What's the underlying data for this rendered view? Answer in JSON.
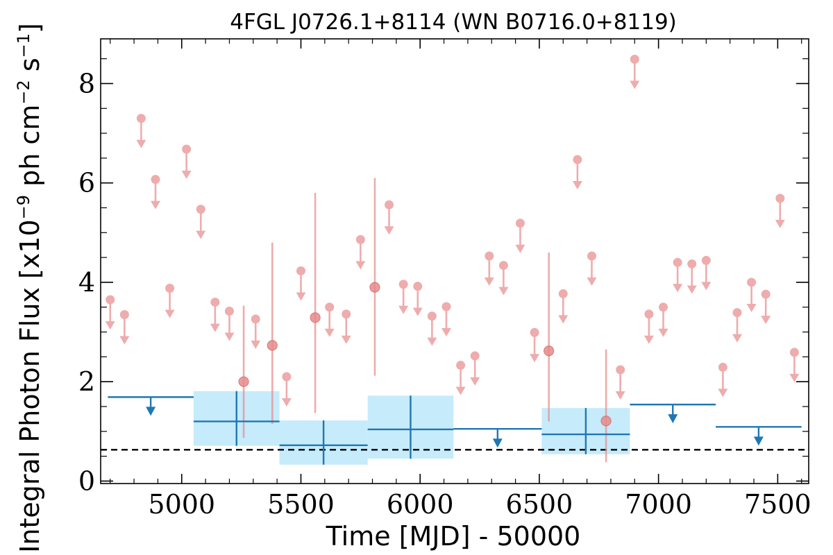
{
  "chart_data": {
    "type": "scatter",
    "title": "4FGL J0726.1+8114 (WN B0716.0+8119)",
    "xlabel": "Time [MJD] - 50000",
    "ylabel": "Integral Photon Flux [x10",
    "ylabel_exp": "−9",
    "ylabel_mid": " ph cm",
    "ylabel_exp2": "−2",
    "ylabel_end": " s",
    "ylabel_exp3": "−1",
    "ylabel_close": "]",
    "xlim": [
      4660,
      7630
    ],
    "ylim": [
      -0.05,
      8.9
    ],
    "xticks": [
      5000,
      5500,
      6000,
      6500,
      7000,
      7500
    ],
    "xtick_labels": [
      "5000",
      "5500",
      "6000",
      "6500",
      "7000",
      "7500"
    ],
    "yticks": [
      0,
      2,
      4,
      6,
      8
    ],
    "ytick_labels": [
      "0",
      "2",
      "4",
      "6",
      "8"
    ],
    "grid": false,
    "reference_line": {
      "y": 0.63,
      "style": "dashed",
      "color": "#000000"
    },
    "colors": {
      "short": "#e88a8a",
      "long": "#1f77b4",
      "band": "#c6ebfb"
    },
    "short_upper_limits": [
      {
        "x": 4700,
        "y": 3.65
      },
      {
        "x": 4760,
        "y": 3.35
      },
      {
        "x": 4830,
        "y": 7.3
      },
      {
        "x": 4890,
        "y": 6.07
      },
      {
        "x": 4950,
        "y": 3.88
      },
      {
        "x": 5020,
        "y": 6.68
      },
      {
        "x": 5080,
        "y": 5.47
      },
      {
        "x": 5140,
        "y": 3.6
      },
      {
        "x": 5200,
        "y": 3.42
      },
      {
        "x": 5310,
        "y": 3.26
      },
      {
        "x": 5440,
        "y": 2.1
      },
      {
        "x": 5500,
        "y": 4.23
      },
      {
        "x": 5620,
        "y": 3.5
      },
      {
        "x": 5690,
        "y": 3.36
      },
      {
        "x": 5750,
        "y": 4.86
      },
      {
        "x": 5870,
        "y": 5.56
      },
      {
        "x": 5930,
        "y": 3.96
      },
      {
        "x": 5990,
        "y": 3.92
      },
      {
        "x": 6050,
        "y": 3.32
      },
      {
        "x": 6110,
        "y": 3.51
      },
      {
        "x": 6170,
        "y": 2.33
      },
      {
        "x": 6230,
        "y": 2.52
      },
      {
        "x": 6290,
        "y": 4.53
      },
      {
        "x": 6350,
        "y": 4.34
      },
      {
        "x": 6420,
        "y": 5.19
      },
      {
        "x": 6480,
        "y": 2.99
      },
      {
        "x": 6600,
        "y": 3.77
      },
      {
        "x": 6660,
        "y": 6.47
      },
      {
        "x": 6720,
        "y": 4.53
      },
      {
        "x": 6840,
        "y": 2.24
      },
      {
        "x": 6900,
        "y": 8.49
      },
      {
        "x": 6960,
        "y": 3.36
      },
      {
        "x": 7020,
        "y": 3.5
      },
      {
        "x": 7080,
        "y": 4.4
      },
      {
        "x": 7140,
        "y": 4.37
      },
      {
        "x": 7200,
        "y": 4.44
      },
      {
        "x": 7270,
        "y": 2.29
      },
      {
        "x": 7330,
        "y": 3.39
      },
      {
        "x": 7390,
        "y": 4.0
      },
      {
        "x": 7450,
        "y": 3.76
      },
      {
        "x": 7510,
        "y": 5.69
      },
      {
        "x": 7570,
        "y": 2.59
      }
    ],
    "short_detections": [
      {
        "x": 5260,
        "y": 2.0,
        "ylo": 0.87,
        "yhi": 3.53
      },
      {
        "x": 5380,
        "y": 2.73,
        "ylo": 1.15,
        "yhi": 4.8
      },
      {
        "x": 5560,
        "y": 3.29,
        "ylo": 1.37,
        "yhi": 5.8
      },
      {
        "x": 5810,
        "y": 3.9,
        "ylo": 2.12,
        "yhi": 6.1
      },
      {
        "x": 6540,
        "y": 2.62,
        "ylo": 1.2,
        "yhi": 4.6
      },
      {
        "x": 6780,
        "y": 1.21,
        "ylo": 0.38,
        "yhi": 2.65
      }
    ],
    "long_upper_limits": [
      {
        "x0": 4690,
        "x1": 5050,
        "y": 1.69,
        "xc": 4870
      },
      {
        "x0": 6140,
        "x1": 6510,
        "y": 1.05,
        "xc": 6325
      },
      {
        "x0": 6880,
        "x1": 7240,
        "y": 1.54,
        "xc": 7060
      },
      {
        "x0": 7240,
        "x1": 7600,
        "y": 1.09,
        "xc": 7420
      }
    ],
    "long_detections": [
      {
        "x0": 5050,
        "x1": 5410,
        "xc": 5230,
        "y": 1.2,
        "ylo": 0.71,
        "yhi": 1.81
      },
      {
        "x0": 5410,
        "x1": 5780,
        "xc": 5595,
        "y": 0.72,
        "ylo": 0.33,
        "yhi": 1.22
      },
      {
        "x0": 5780,
        "x1": 6140,
        "xc": 5960,
        "y": 1.04,
        "ylo": 0.45,
        "yhi": 1.72
      },
      {
        "x0": 6510,
        "x1": 6880,
        "xc": 6695,
        "y": 0.94,
        "ylo": 0.54,
        "yhi": 1.47
      }
    ]
  }
}
